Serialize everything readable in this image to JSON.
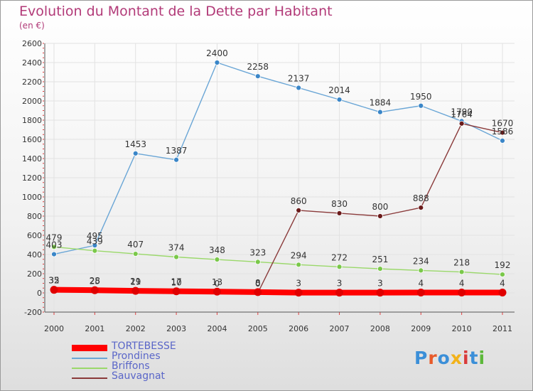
{
  "header": {
    "title": "Evolution du Montant de la Dette par Habitant",
    "subtitle": "(en €)"
  },
  "logo": {
    "text": "Proxiti",
    "colors": [
      "#3b8fd8",
      "#e85a2a",
      "#3b8fd8",
      "#f2b21a",
      "#d93a3a",
      "#3b8fd8",
      "#5cb83a"
    ]
  },
  "chart_data": {
    "type": "line",
    "categories": [
      "2000",
      "2001",
      "2002",
      "2003",
      "2004",
      "2005",
      "2006",
      "2007",
      "2008",
      "2009",
      "2010",
      "2011"
    ],
    "ylim": [
      -200,
      2600
    ],
    "yticks": [
      -200,
      0,
      200,
      400,
      600,
      800,
      1000,
      1200,
      1400,
      1600,
      1800,
      2000,
      2200,
      2400,
      2600
    ],
    "grid": true,
    "series": [
      {
        "name": "TORTEBESSE",
        "color": "#ff0000",
        "marker": "#e00000",
        "thick": true,
        "values": [
          32,
          28,
          21,
          17,
          13,
          8,
          3,
          3,
          3,
          4,
          4,
          4
        ],
        "labels": [
          "32",
          "28",
          "21",
          "17",
          "13",
          "8",
          "3",
          "3",
          "3",
          "4",
          "4",
          "4"
        ]
      },
      {
        "name": "Prondines",
        "color": "#6aa6d6",
        "marker": "#3a86c8",
        "values": [
          403,
          495,
          1453,
          1387,
          2400,
          2258,
          2137,
          2014,
          1884,
          1950,
          1790,
          1586
        ],
        "labels": [
          "403",
          "495",
          "1453",
          "1387",
          "2400",
          "2258",
          "2137",
          "2014",
          "1884",
          "1950",
          "1790",
          "1586"
        ]
      },
      {
        "name": "Briffons",
        "color": "#9ad86a",
        "marker": "#7ac84a",
        "values": [
          479,
          439,
          407,
          374,
          348,
          323,
          294,
          272,
          251,
          234,
          218,
          192
        ],
        "labels": [
          "479",
          "439",
          "407",
          "374",
          "348",
          "323",
          "294",
          "272",
          "251",
          "234",
          "218",
          "192"
        ]
      },
      {
        "name": "Sauvagnat",
        "color": "#8a3a3a",
        "marker": "#6a1a1a",
        "values": [
          35,
          25,
          19,
          10,
          0,
          0,
          860,
          830,
          800,
          888,
          1764,
          1670
        ],
        "labels": [
          "35",
          "25",
          "19",
          "10",
          "0",
          "0",
          "860",
          "830",
          "800",
          "888",
          "1764",
          "1670"
        ]
      }
    ]
  }
}
